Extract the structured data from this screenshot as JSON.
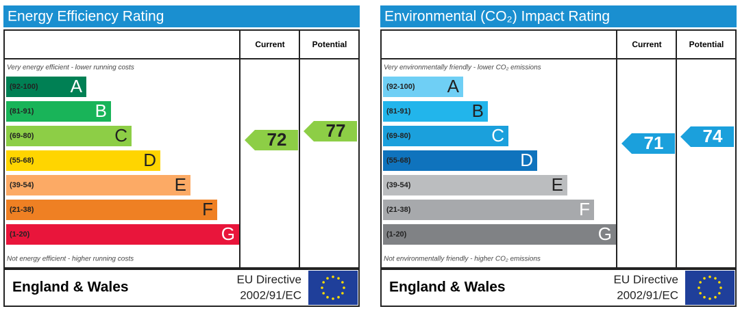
{
  "panels": [
    {
      "title": "Energy Efficiency Rating",
      "headers": [
        "Current",
        "Potential"
      ],
      "top_note": "Very energy efficient - lower running costs",
      "bottom_note": "Not energy efficient - higher running costs",
      "bands": [
        {
          "range": "(92-100)",
          "letter": "A",
          "color": "#008054"
        },
        {
          "range": "(81-91)",
          "letter": "B",
          "color": "#19b459"
        },
        {
          "range": "(69-80)",
          "letter": "C",
          "color": "#8dce46"
        },
        {
          "range": "(55-68)",
          "letter": "D",
          "color": "#ffd500"
        },
        {
          "range": "(39-54)",
          "letter": "E",
          "color": "#fcaa65"
        },
        {
          "range": "(21-38)",
          "letter": "F",
          "color": "#ef8023"
        },
        {
          "range": "(1-20)",
          "letter": "G",
          "color": "#e9153b"
        }
      ],
      "current": 72,
      "potential": 77,
      "arrow_color": "#8dce46",
      "region": "England & Wales",
      "directive": [
        "EU Directive",
        "2002/91/EC"
      ]
    },
    {
      "title": "Environmental (CO₂) Impact Rating",
      "headers": [
        "Current",
        "Potential"
      ],
      "top_note": "Very environmentally friendly - lower CO₂ emissions",
      "bottom_note": "Not environmentally friendly - higher CO₂ emissions",
      "bands": [
        {
          "range": "(92-100)",
          "letter": "A",
          "color": "#6fcff5"
        },
        {
          "range": "(81-91)",
          "letter": "B",
          "color": "#22b5eb"
        },
        {
          "range": "(69-80)",
          "letter": "C",
          "color": "#1ba0dc"
        },
        {
          "range": "(55-68)",
          "letter": "D",
          "color": "#0f73bd"
        },
        {
          "range": "(39-54)",
          "letter": "E",
          "color": "#bbbdbf"
        },
        {
          "range": "(21-38)",
          "letter": "F",
          "color": "#a7a9ac"
        },
        {
          "range": "(1-20)",
          "letter": "G",
          "color": "#808285"
        }
      ],
      "current": 71,
      "potential": 74,
      "arrow_color": "#1ba0dc",
      "region": "England & Wales",
      "directive": [
        "EU Directive",
        "2002/91/EC"
      ]
    }
  ]
}
